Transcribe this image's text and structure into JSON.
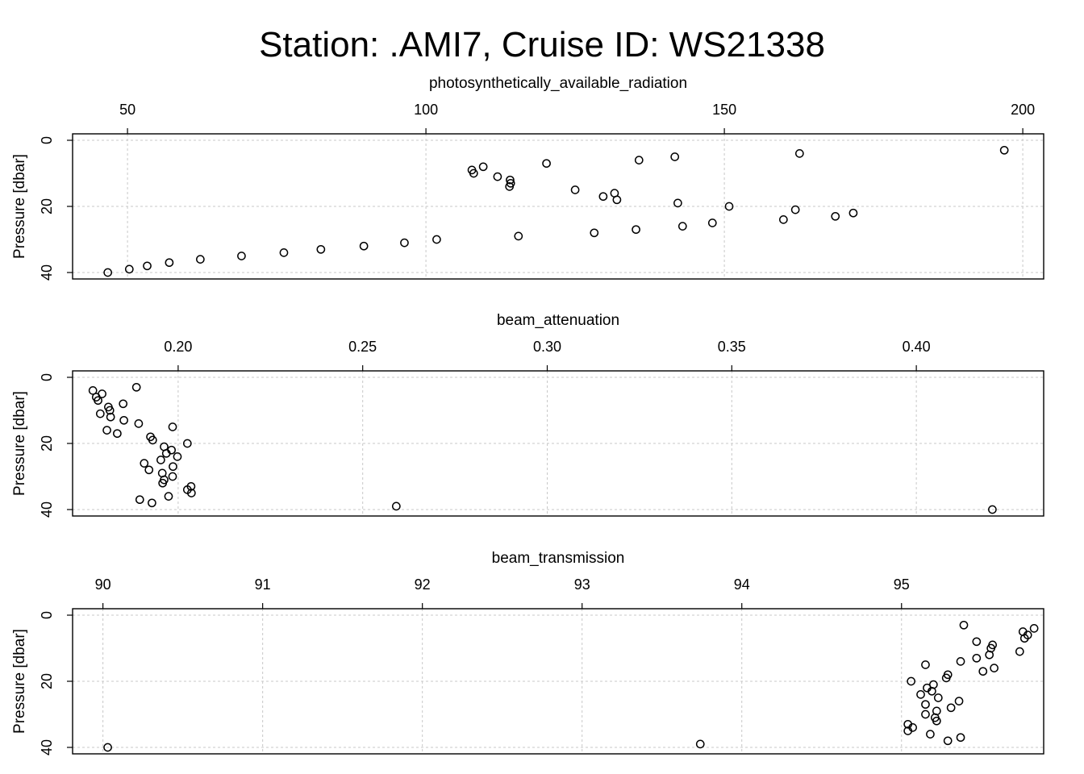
{
  "title": "Station: .AMI7, Cruise ID: WS21338",
  "chart_data": [
    {
      "type": "scatter",
      "title": "photosynthetically_available_radiation",
      "xlabel": "photosynthetically_available_radiation",
      "ylabel": "Pressure [dbar]",
      "xlim": [
        40.8,
        203.5
      ],
      "ylim": [
        0,
        40
      ],
      "y_reversed": true,
      "x_axis_position": "top",
      "grid": true,
      "xticks": [
        50,
        100,
        150,
        200
      ],
      "yticks": [
        0,
        20,
        40
      ],
      "points": [
        {
          "x": 196.9,
          "y": 3
        },
        {
          "x": 162.6,
          "y": 4
        },
        {
          "x": 141.7,
          "y": 5
        },
        {
          "x": 135.7,
          "y": 6
        },
        {
          "x": 120.2,
          "y": 7
        },
        {
          "x": 109.6,
          "y": 8
        },
        {
          "x": 107.7,
          "y": 9
        },
        {
          "x": 108.0,
          "y": 10
        },
        {
          "x": 112.0,
          "y": 11
        },
        {
          "x": 114.1,
          "y": 12
        },
        {
          "x": 114.2,
          "y": 13
        },
        {
          "x": 114.0,
          "y": 14
        },
        {
          "x": 125.0,
          "y": 15
        },
        {
          "x": 131.6,
          "y": 16
        },
        {
          "x": 129.7,
          "y": 17
        },
        {
          "x": 132.0,
          "y": 18
        },
        {
          "x": 142.2,
          "y": 19
        },
        {
          "x": 150.8,
          "y": 20
        },
        {
          "x": 161.9,
          "y": 21
        },
        {
          "x": 171.6,
          "y": 22
        },
        {
          "x": 168.6,
          "y": 23
        },
        {
          "x": 159.9,
          "y": 24
        },
        {
          "x": 148.0,
          "y": 25
        },
        {
          "x": 143.0,
          "y": 26
        },
        {
          "x": 135.2,
          "y": 27
        },
        {
          "x": 128.2,
          "y": 28
        },
        {
          "x": 115.5,
          "y": 29
        },
        {
          "x": 101.8,
          "y": 30
        },
        {
          "x": 96.4,
          "y": 31
        },
        {
          "x": 89.6,
          "y": 32
        },
        {
          "x": 82.4,
          "y": 33
        },
        {
          "x": 76.2,
          "y": 34
        },
        {
          "x": 69.1,
          "y": 35
        },
        {
          "x": 62.2,
          "y": 36
        },
        {
          "x": 57.0,
          "y": 37
        },
        {
          "x": 53.3,
          "y": 38
        },
        {
          "x": 50.3,
          "y": 39
        },
        {
          "x": 46.7,
          "y": 40
        }
      ]
    },
    {
      "type": "scatter",
      "title": "beam_attenuation",
      "xlabel": "beam_attenuation",
      "ylabel": "Pressure [dbar]",
      "xlim": [
        0.1714,
        0.4345
      ],
      "ylim": [
        0,
        40
      ],
      "y_reversed": true,
      "x_axis_position": "top",
      "grid": true,
      "xticks": [
        0.2,
        0.25,
        0.3,
        0.35,
        0.4
      ],
      "xtick_labels": [
        "0.20",
        "0.25",
        "0.30",
        "0.35",
        "0.40"
      ],
      "yticks": [
        0,
        20,
        40
      ],
      "points": [
        {
          "x": 0.1887,
          "y": 3
        },
        {
          "x": 0.1769,
          "y": 4
        },
        {
          "x": 0.1794,
          "y": 5
        },
        {
          "x": 0.1778,
          "y": 6
        },
        {
          "x": 0.1783,
          "y": 7
        },
        {
          "x": 0.1851,
          "y": 8
        },
        {
          "x": 0.1811,
          "y": 9
        },
        {
          "x": 0.1815,
          "y": 10
        },
        {
          "x": 0.1789,
          "y": 11
        },
        {
          "x": 0.1817,
          "y": 12
        },
        {
          "x": 0.1853,
          "y": 13
        },
        {
          "x": 0.1893,
          "y": 14
        },
        {
          "x": 0.1985,
          "y": 15
        },
        {
          "x": 0.1807,
          "y": 16
        },
        {
          "x": 0.1835,
          "y": 17
        },
        {
          "x": 0.1925,
          "y": 18
        },
        {
          "x": 0.1931,
          "y": 19
        },
        {
          "x": 0.2025,
          "y": 20
        },
        {
          "x": 0.1962,
          "y": 21
        },
        {
          "x": 0.1982,
          "y": 22
        },
        {
          "x": 0.1968,
          "y": 23
        },
        {
          "x": 0.1998,
          "y": 24
        },
        {
          "x": 0.1953,
          "y": 25
        },
        {
          "x": 0.1908,
          "y": 26
        },
        {
          "x": 0.1986,
          "y": 27
        },
        {
          "x": 0.1921,
          "y": 28
        },
        {
          "x": 0.1957,
          "y": 29
        },
        {
          "x": 0.1985,
          "y": 30
        },
        {
          "x": 0.1962,
          "y": 31
        },
        {
          "x": 0.1958,
          "y": 32
        },
        {
          "x": 0.2035,
          "y": 33
        },
        {
          "x": 0.2025,
          "y": 34
        },
        {
          "x": 0.2036,
          "y": 35
        },
        {
          "x": 0.1974,
          "y": 36
        },
        {
          "x": 0.1896,
          "y": 37
        },
        {
          "x": 0.1929,
          "y": 38
        },
        {
          "x": 0.2591,
          "y": 39
        },
        {
          "x": 0.4206,
          "y": 40
        }
      ]
    },
    {
      "type": "scatter",
      "title": "beam_transmission",
      "xlabel": "beam_transmission",
      "ylabel": "Pressure [dbar]",
      "xlim": [
        89.81,
        95.89
      ],
      "ylim": [
        0,
        40
      ],
      "y_reversed": true,
      "x_axis_position": "top",
      "grid": true,
      "xticks": [
        90,
        91,
        92,
        93,
        94,
        95
      ],
      "yticks": [
        0,
        20,
        40
      ],
      "points": [
        {
          "x": 95.39,
          "y": 3
        },
        {
          "x": 95.83,
          "y": 4
        },
        {
          "x": 95.76,
          "y": 5
        },
        {
          "x": 95.79,
          "y": 6
        },
        {
          "x": 95.77,
          "y": 7
        },
        {
          "x": 95.47,
          "y": 8
        },
        {
          "x": 95.57,
          "y": 9
        },
        {
          "x": 95.56,
          "y": 10
        },
        {
          "x": 95.74,
          "y": 11
        },
        {
          "x": 95.55,
          "y": 12
        },
        {
          "x": 95.47,
          "y": 13
        },
        {
          "x": 95.37,
          "y": 14
        },
        {
          "x": 95.15,
          "y": 15
        },
        {
          "x": 95.58,
          "y": 16
        },
        {
          "x": 95.51,
          "y": 17
        },
        {
          "x": 95.29,
          "y": 18
        },
        {
          "x": 95.28,
          "y": 19
        },
        {
          "x": 95.06,
          "y": 20
        },
        {
          "x": 95.2,
          "y": 21
        },
        {
          "x": 95.16,
          "y": 22
        },
        {
          "x": 95.19,
          "y": 23
        },
        {
          "x": 95.12,
          "y": 24
        },
        {
          "x": 95.23,
          "y": 25
        },
        {
          "x": 95.36,
          "y": 26
        },
        {
          "x": 95.15,
          "y": 27
        },
        {
          "x": 95.31,
          "y": 28
        },
        {
          "x": 95.22,
          "y": 29
        },
        {
          "x": 95.15,
          "y": 30
        },
        {
          "x": 95.21,
          "y": 31
        },
        {
          "x": 95.22,
          "y": 32
        },
        {
          "x": 95.04,
          "y": 33
        },
        {
          "x": 95.07,
          "y": 34
        },
        {
          "x": 95.04,
          "y": 35
        },
        {
          "x": 95.18,
          "y": 36
        },
        {
          "x": 95.37,
          "y": 37
        },
        {
          "x": 95.29,
          "y": 38
        },
        {
          "x": 93.74,
          "y": 39
        },
        {
          "x": 90.03,
          "y": 40
        }
      ]
    }
  ]
}
